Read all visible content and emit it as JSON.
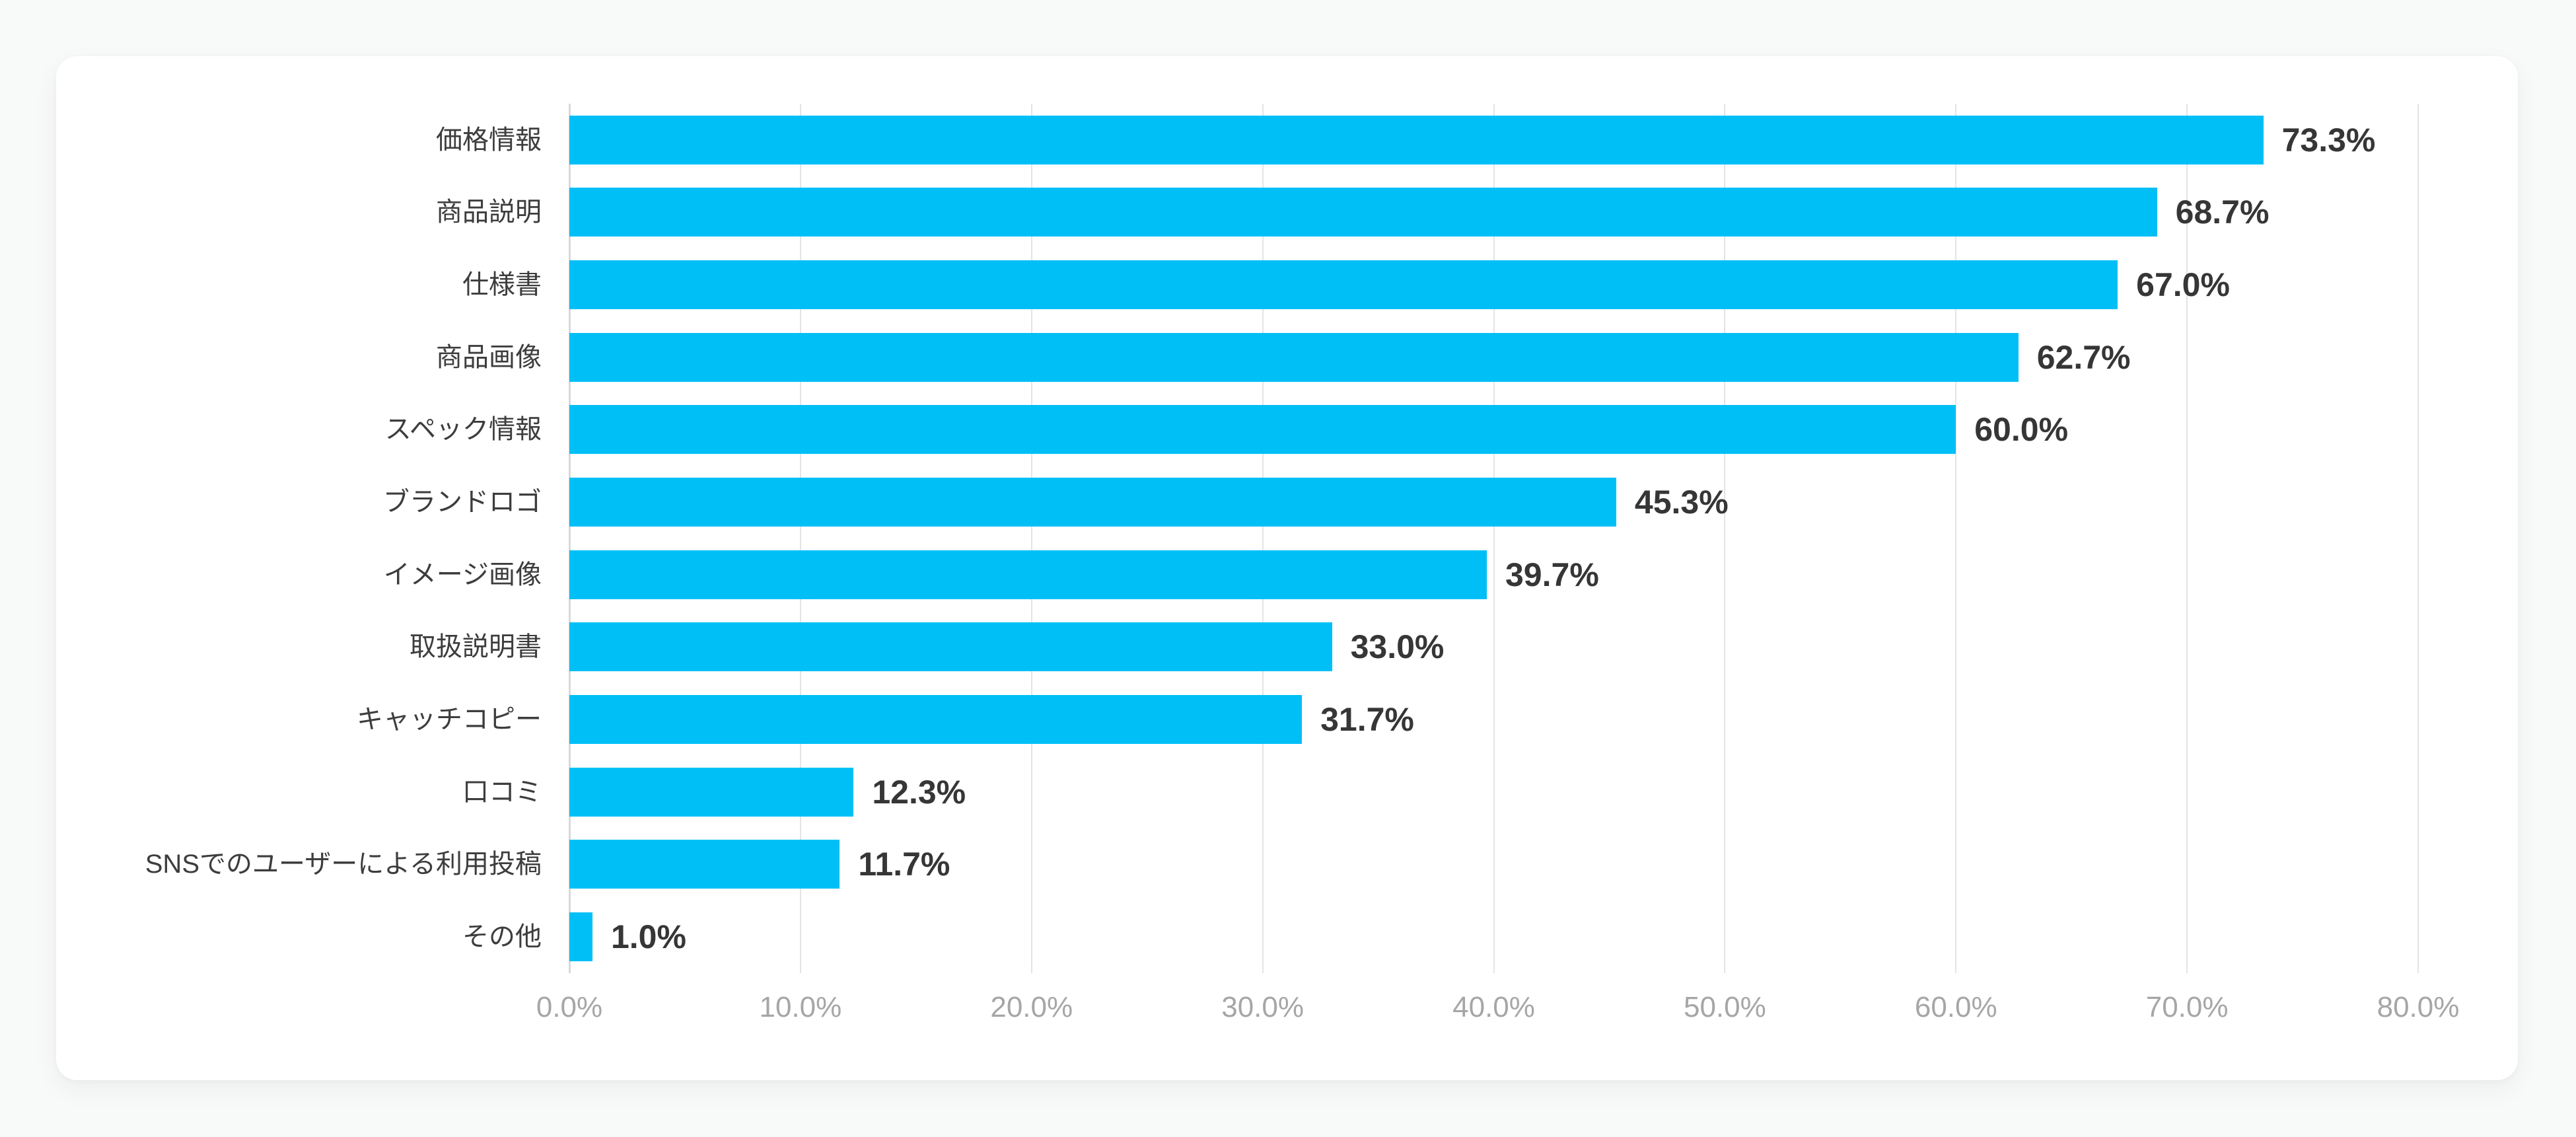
{
  "chart_data": {
    "type": "bar",
    "orientation": "horizontal",
    "title": "",
    "xlabel": "",
    "ylabel": "",
    "categories": [
      "価格情報",
      "商品説明",
      "仕様書",
      "商品画像",
      "スペック情報",
      "ブランドロゴ",
      "イメージ画像",
      "取扱説明書",
      "キャッチコピー",
      "口コミ",
      "SNSでのユーザーによる利用投稿",
      "その他"
    ],
    "values": [
      73.3,
      68.7,
      67.0,
      62.7,
      60.0,
      45.3,
      39.7,
      33.0,
      31.7,
      12.3,
      11.7,
      1.0
    ],
    "value_labels": [
      "73.3%",
      "68.7%",
      "67.0%",
      "62.7%",
      "60.0%",
      "45.3%",
      "39.7%",
      "33.0%",
      "31.7%",
      "12.3%",
      "11.7%",
      "1.0%"
    ],
    "x_ticks": [
      "0.0%",
      "10.0%",
      "20.0%",
      "30.0%",
      "40.0%",
      "50.0%",
      "60.0%",
      "70.0%",
      "80.0%"
    ],
    "xlim": [
      0,
      80
    ],
    "grid": true,
    "legend": "none",
    "colors": {
      "bar": "#00bff7",
      "category_label": "#3d3d3d",
      "value_label": "#363636",
      "tick_label": "#a6a6a6",
      "gridline": "#e4e4e4",
      "axis_line": "#d9d9d9",
      "card_background": "#ffffff",
      "page_background": "#f8f9f9"
    }
  }
}
